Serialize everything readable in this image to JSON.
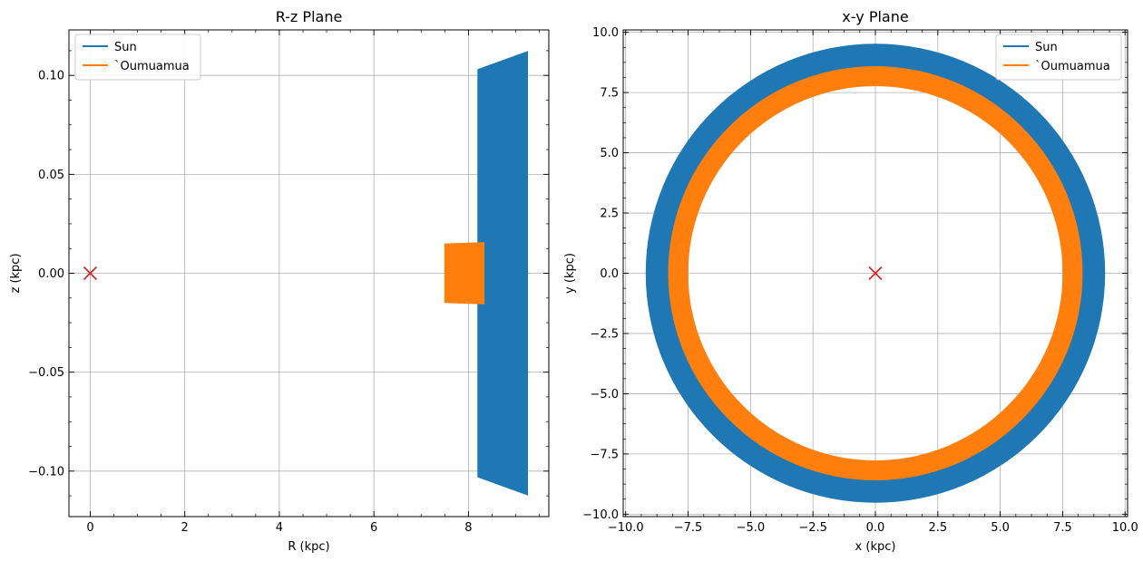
{
  "chart_data": [
    {
      "type": "line",
      "title": "R-z Plane",
      "xlabel": "R (kpc)",
      "ylabel": "z (kpc)",
      "xlim": [
        -0.45,
        9.7
      ],
      "ylim": [
        -0.123,
        0.123
      ],
      "xticks": [
        0,
        2,
        4,
        6,
        8
      ],
      "xtick_labels": [
        "0",
        "2",
        "4",
        "6",
        "8"
      ],
      "yticks": [
        -0.1,
        -0.05,
        0.0,
        0.05,
        0.1
      ],
      "ytick_labels": [
        "−0.10",
        "−0.05",
        "0.00",
        "0.05",
        "0.10"
      ],
      "grid": true,
      "legend_location": "upper left",
      "series": [
        {
          "name": "Sun",
          "color": "#1f77b4",
          "rendered_as": "filled orbit envelope",
          "envelope": [
            [
              8.2,
              0.103
            ],
            [
              9.25,
              0.112
            ],
            [
              9.25,
              -0.112
            ],
            [
              8.2,
              -0.103
            ]
          ]
        },
        {
          "name": "`Oumuamua",
          "color": "#ff7f0e",
          "rendered_as": "filled orbit envelope",
          "envelope": [
            [
              7.5,
              0.0148
            ],
            [
              8.33,
              0.0155
            ],
            [
              8.33,
              -0.0155
            ],
            [
              7.5,
              -0.0148
            ]
          ]
        }
      ],
      "center_marker": {
        "x": 0,
        "y": 0,
        "symbol": "x",
        "color": "#d62728"
      }
    },
    {
      "type": "line",
      "title": "x-y Plane",
      "xlabel": "x (kpc)",
      "ylabel": "y (kpc)",
      "xlim": [
        -10.1,
        10.1
      ],
      "ylim": [
        -10.1,
        10.1
      ],
      "xticks": [
        -10,
        -7.5,
        -5,
        -2.5,
        0,
        2.5,
        5,
        7.5,
        10
      ],
      "xtick_labels": [
        "−10.0",
        "−7.5",
        "−5.0",
        "−2.5",
        "0.0",
        "2.5",
        "5.0",
        "7.5",
        "10.0"
      ],
      "yticks": [
        -10,
        -7.5,
        -5,
        -2.5,
        0,
        2.5,
        5,
        7.5,
        10
      ],
      "ytick_labels": [
        "−10.0",
        "−7.5",
        "−5.0",
        "−2.5",
        "0.0",
        "2.5",
        "5.0",
        "7.5",
        "10.0"
      ],
      "grid": true,
      "legend_location": "upper right",
      "series": [
        {
          "name": "Sun",
          "color": "#1f77b4",
          "rendered_as": "annulus",
          "r_inner": 8.25,
          "r_outer": 9.2
        },
        {
          "name": "`Oumuamua",
          "color": "#ff7f0e",
          "rendered_as": "annulus",
          "r_inner": 7.5,
          "r_outer": 8.3
        }
      ],
      "center_marker": {
        "x": 0,
        "y": 0,
        "symbol": "x",
        "color": "#d62728"
      }
    }
  ]
}
